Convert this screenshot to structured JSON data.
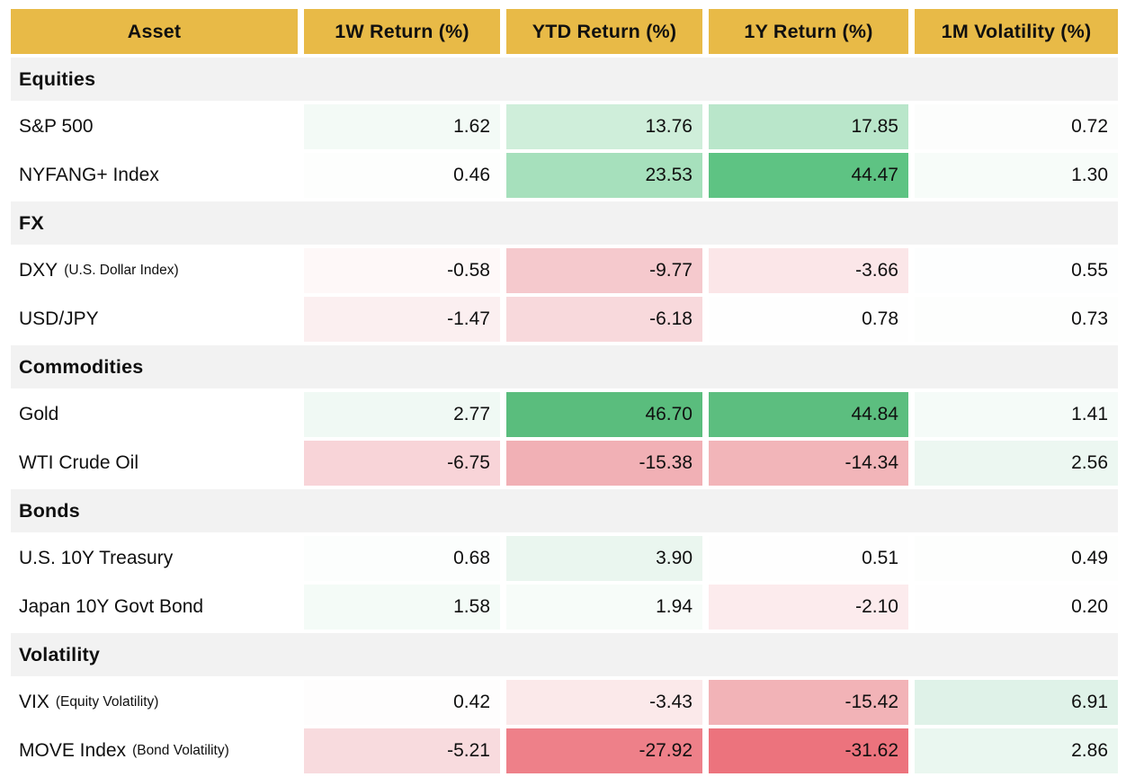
{
  "colors": {
    "header_bg": "#e8ba47",
    "section_bg": "#f2f2f2",
    "text": "#101010",
    "positive_full": "#57bd79",
    "negative_full": "#eb6e79"
  },
  "chart_data": {
    "type": "table",
    "title": "Asset returns and volatility heatmap table",
    "columns": [
      "Asset",
      "1W Return (%)",
      "YTD Return (%)",
      "1Y Return (%)",
      "1M Volatility (%)"
    ],
    "sections": [
      {
        "label": "Equities",
        "rows": [
          {
            "asset": "S&P 500",
            "note": "",
            "values": [
              1.62,
              13.76,
              17.85,
              0.72
            ],
            "display": [
              "1.62",
              "13.76",
              "17.85",
              "0.72"
            ],
            "cell_colors": [
              "#f3faf6",
              "#cfeeda",
              "#b9e6ca",
              "#fcfdfc"
            ]
          },
          {
            "asset": "NYFANG+ Index",
            "note": "",
            "values": [
              0.46,
              23.53,
              44.47,
              1.3
            ],
            "display": [
              "0.46",
              "23.53",
              "44.47",
              "1.30"
            ],
            "cell_colors": [
              "#fdfefd",
              "#a6e0bc",
              "#5ec383",
              "#f7fcf9"
            ]
          }
        ]
      },
      {
        "label": "FX",
        "rows": [
          {
            "asset": "DXY",
            "note": "(U.S. Dollar Index)",
            "values": [
              -0.58,
              -9.77,
              -3.66,
              0.55
            ],
            "display": [
              "-0.58",
              "-9.77",
              "-3.66",
              "0.55"
            ],
            "cell_colors": [
              "#fef8f8",
              "#f5c9cd",
              "#fbe6e8",
              "#fdfefe"
            ]
          },
          {
            "asset": "USD/JPY",
            "note": "",
            "values": [
              -1.47,
              -6.18,
              0.78,
              0.73
            ],
            "display": [
              "-1.47",
              "-6.18",
              "0.78",
              "0.73"
            ],
            "cell_colors": [
              "#fbeff0",
              "#f8d9dc",
              "#fefefe",
              "#fdfefd"
            ]
          }
        ]
      },
      {
        "label": "Commodities",
        "rows": [
          {
            "asset": "Gold",
            "note": "",
            "values": [
              2.77,
              46.7,
              44.84,
              1.41
            ],
            "display": [
              "2.77",
              "46.70",
              "44.84",
              "1.41"
            ],
            "cell_colors": [
              "#f0f9f4",
              "#5abd7d",
              "#5cbe7f",
              "#f5fbf8"
            ]
          },
          {
            "asset": "WTI Crude Oil",
            "note": "",
            "values": [
              -6.75,
              -15.38,
              -14.34,
              2.56
            ],
            "display": [
              "-6.75",
              "-15.38",
              "-14.34",
              "2.56"
            ],
            "cell_colors": [
              "#f8d4d8",
              "#f1b0b5",
              "#f2b5b9",
              "#ecf7f1"
            ]
          }
        ]
      },
      {
        "label": "Bonds",
        "rows": [
          {
            "asset": "U.S. 10Y Treasury",
            "note": "",
            "values": [
              0.68,
              3.9,
              0.51,
              0.49
            ],
            "display": [
              "0.68",
              "3.90",
              "0.51",
              "0.49"
            ],
            "cell_colors": [
              "#fcfefd",
              "#eaf6ef",
              "#fefefe",
              "#fdfefd"
            ]
          },
          {
            "asset": "Japan 10Y Govt Bond",
            "note": "",
            "values": [
              1.58,
              1.94,
              -2.1,
              0.2
            ],
            "display": [
              "1.58",
              "1.94",
              "-2.10",
              "0.20"
            ],
            "cell_colors": [
              "#f4fbf7",
              "#f7fcf9",
              "#fcebed",
              "#fefefe"
            ]
          }
        ]
      },
      {
        "label": "Volatility",
        "rows": [
          {
            "asset": "VIX",
            "note": "(Equity Volatility)",
            "values": [
              0.42,
              -3.43,
              -15.42,
              6.91
            ],
            "display": [
              "0.42",
              "-3.43",
              "-15.42",
              "6.91"
            ],
            "cell_colors": [
              "#fefdfd",
              "#fbe9ea",
              "#f2b3b7",
              "#dff2e8"
            ]
          },
          {
            "asset": "MOVE Index",
            "note": "(Bond Volatility)",
            "values": [
              -5.21,
              -27.92,
              -31.62,
              2.86
            ],
            "display": [
              "-5.21",
              "-27.92",
              "-31.62",
              "2.86"
            ],
            "cell_colors": [
              "#f8dbde",
              "#ee8089",
              "#ec737d",
              "#eaf7f0"
            ]
          }
        ]
      }
    ]
  }
}
